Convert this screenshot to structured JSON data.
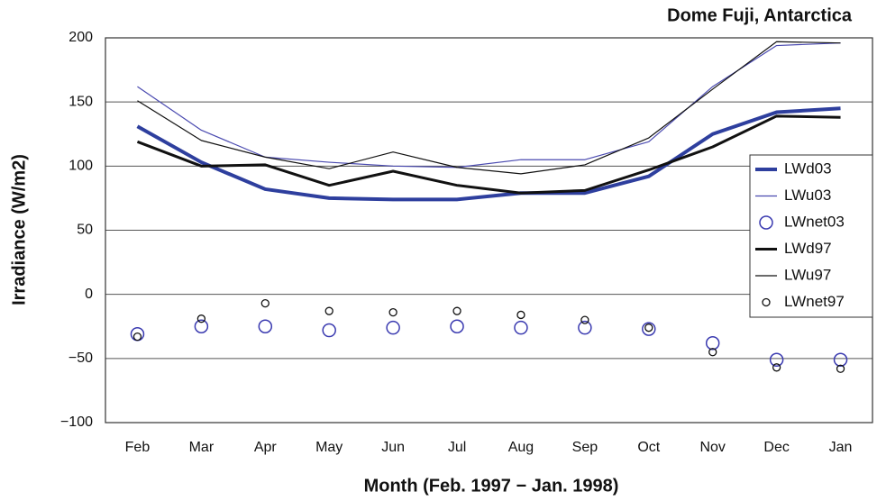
{
  "chart_data": {
    "type": "line",
    "title": "Dome Fuji, Antarctica",
    "x_label": "Month (Feb. 1997 − Jan. 1998)",
    "y_label": "Irradiance (W/m2)",
    "categories": [
      "Feb",
      "Mar",
      "Apr",
      "May",
      "Jun",
      "Jul",
      "Aug",
      "Sep",
      "Oct",
      "Nov",
      "Dec",
      "Jan"
    ],
    "ylim": [
      -100,
      200
    ],
    "yticks": [
      {
        "value": -100,
        "label": "−100"
      },
      {
        "value": -50,
        "label": "−50"
      },
      0,
      50,
      100,
      150,
      200
    ],
    "grid": true,
    "legend": "right",
    "series": [
      {
        "name": "LWd03",
        "color": "#2e3f9e",
        "line_width": 4,
        "values": [
          131,
          103,
          82,
          75,
          74,
          74,
          79,
          79,
          92,
          125,
          142,
          145
        ]
      },
      {
        "name": "LWu03",
        "color": "#4a4ab0",
        "line_width": 1.2,
        "values": [
          162,
          128,
          107,
          103,
          100,
          99,
          105,
          105,
          119,
          162,
          194,
          196
        ]
      },
      {
        "name": "LWnet03",
        "color": "#3a3ab0",
        "marker": "large-circle",
        "values": [
          -31,
          -25,
          -25,
          -28,
          -26,
          -25,
          -26,
          -26,
          -27,
          -38,
          -51,
          -51
        ]
      },
      {
        "name": "LWd97",
        "color": "#111111",
        "line_width": 3,
        "values": [
          119,
          100,
          101,
          85,
          96,
          85,
          79,
          81,
          97,
          115,
          139,
          138
        ]
      },
      {
        "name": "LWu97",
        "color": "#111111",
        "line_width": 1.2,
        "values": [
          151,
          120,
          107,
          98,
          111,
          99,
          94,
          101,
          122,
          160,
          197,
          196
        ]
      },
      {
        "name": "LWnet97",
        "color": "#111111",
        "marker": "small-circle",
        "values": [
          -33,
          -19,
          -7,
          -13,
          -14,
          -13,
          -16,
          -20,
          -26,
          -45,
          -57,
          -58
        ]
      }
    ]
  }
}
